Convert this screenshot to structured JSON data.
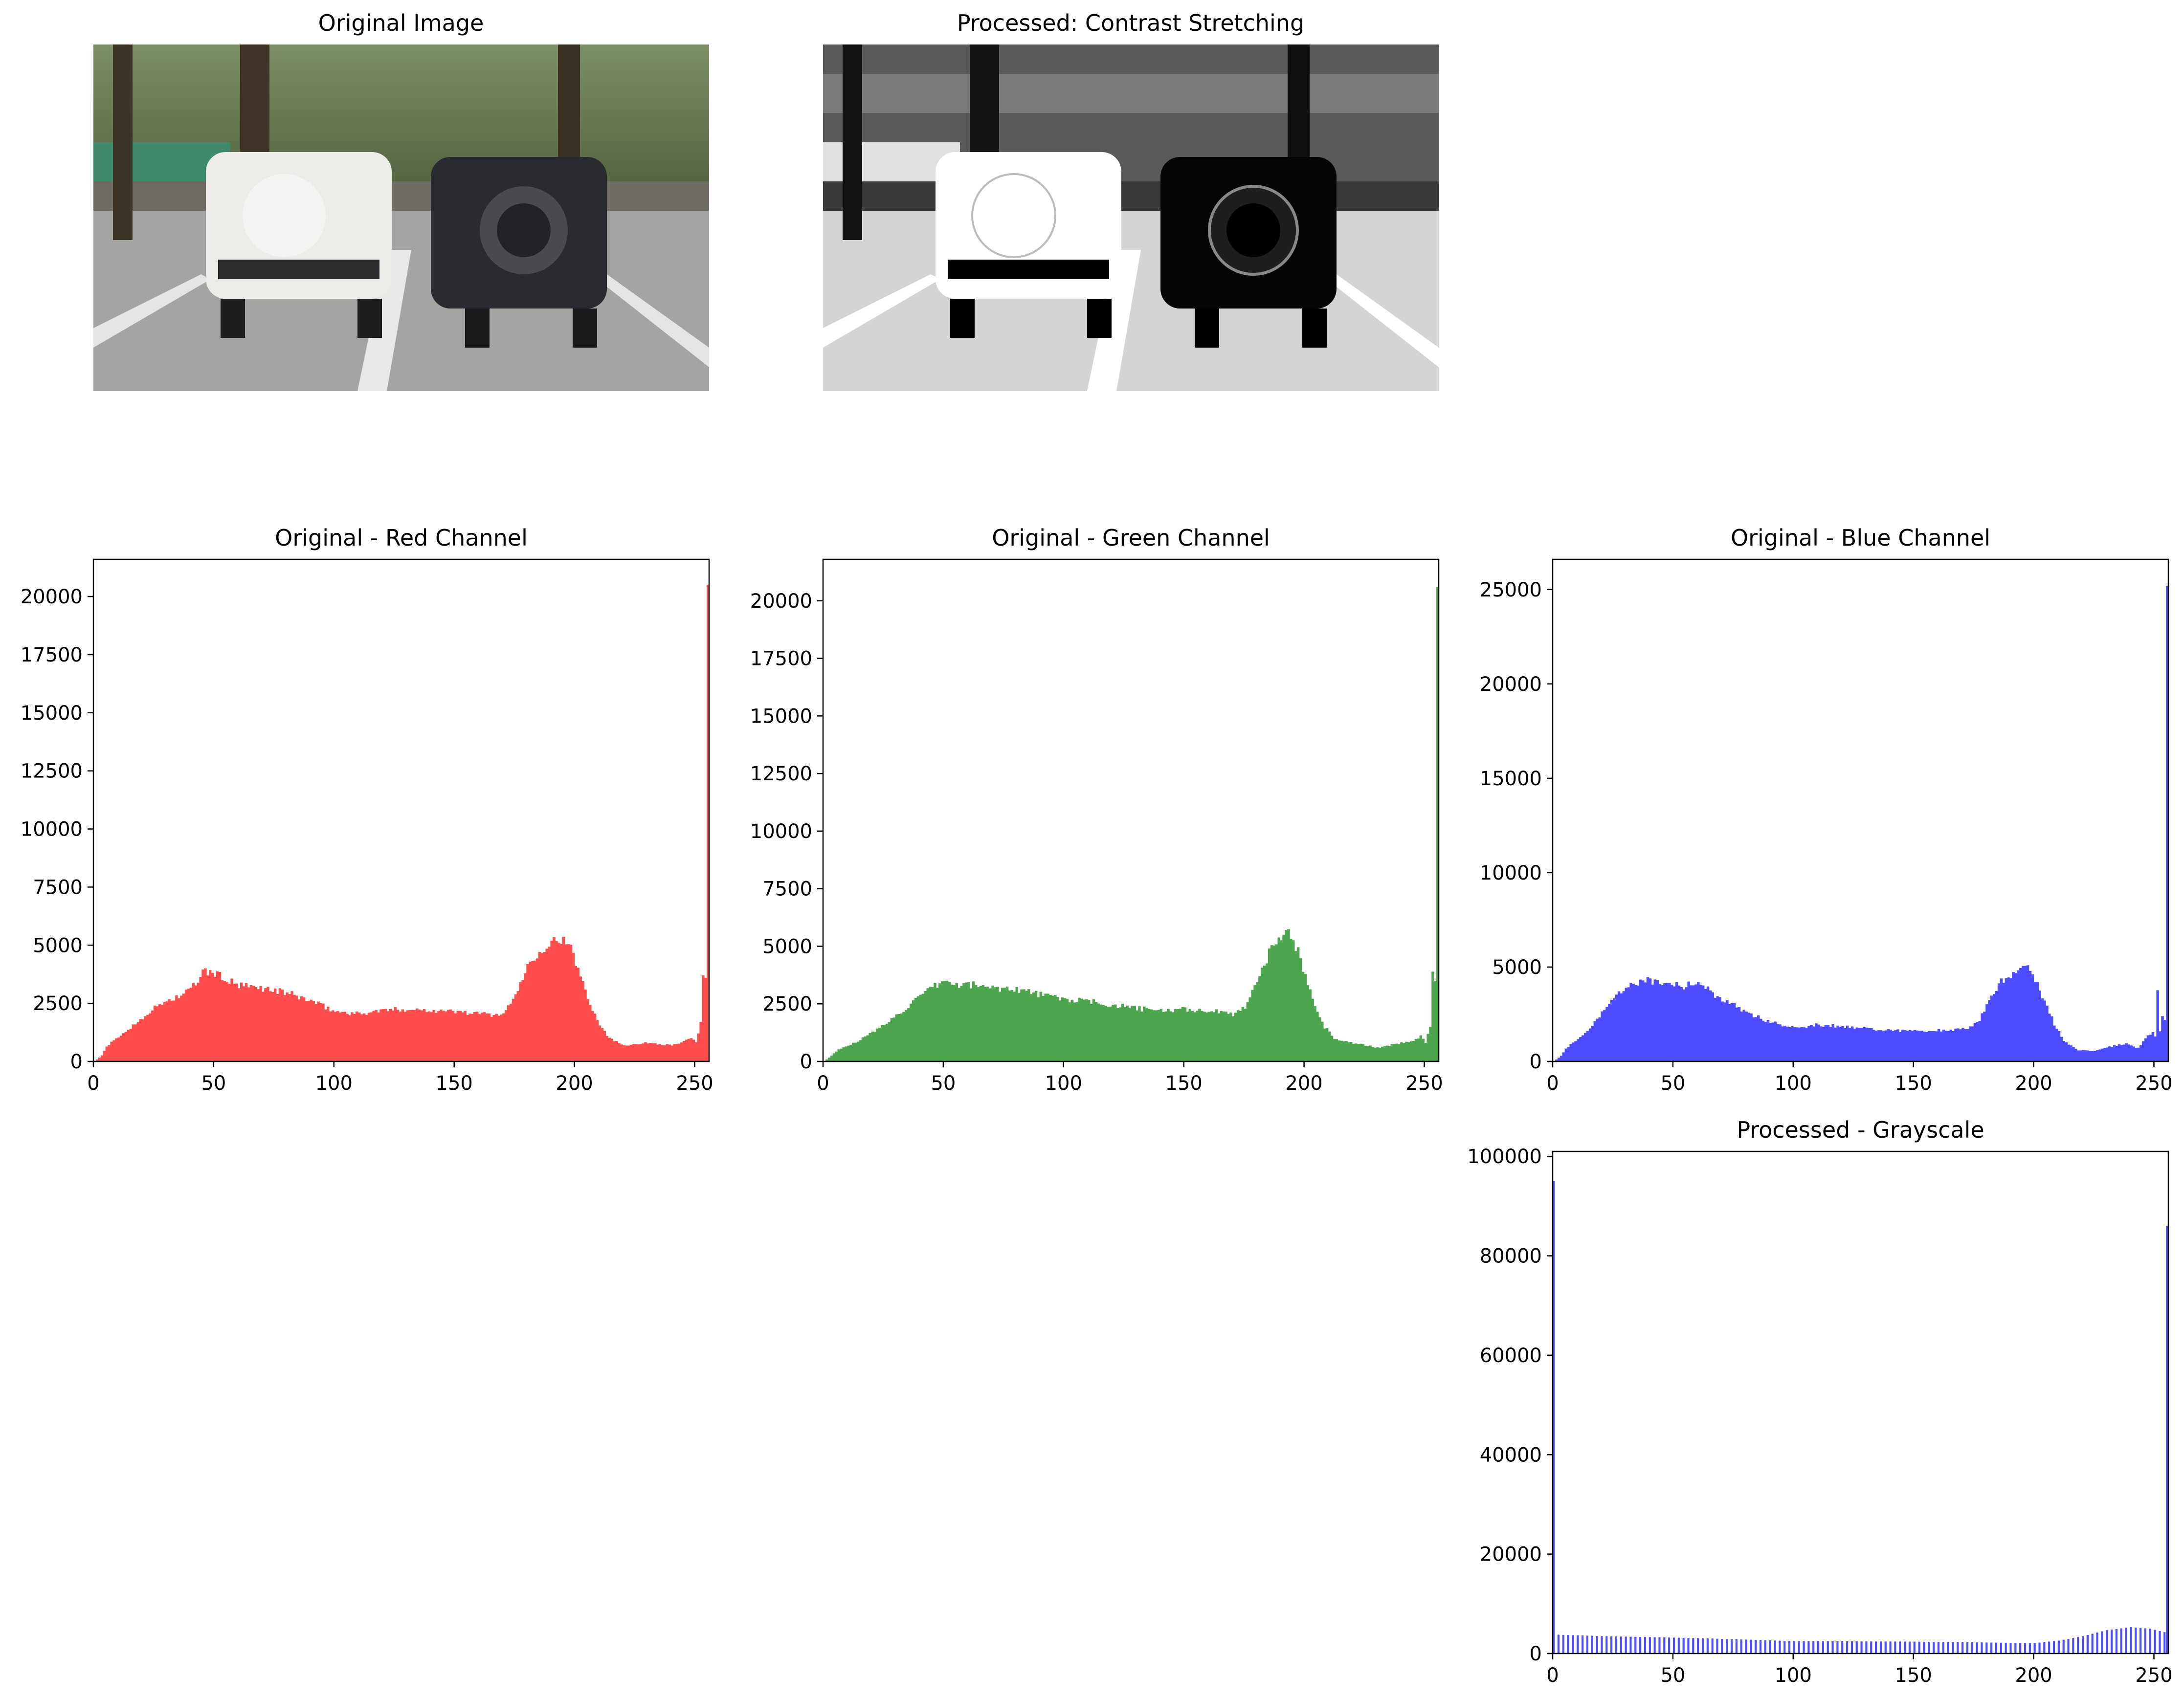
{
  "images": {
    "original_title": "Original Image",
    "processed_title": "Processed: Contrast Stretching"
  },
  "chart_data": [
    {
      "type": "histogram",
      "title": "Original - Red Channel",
      "xlabel": "",
      "ylabel": "",
      "xlim": [
        0,
        256
      ],
      "ylim": [
        0,
        21600
      ],
      "xticks": [
        0,
        50,
        100,
        150,
        200,
        250
      ],
      "yticks": [
        0,
        2500,
        5000,
        7500,
        10000,
        12500,
        15000,
        17500,
        20000
      ],
      "color": "#ff4d4d",
      "bins": 256,
      "profile": [
        [
          0,
          0
        ],
        [
          3,
          250
        ],
        [
          5,
          650
        ],
        [
          10,
          1050
        ],
        [
          15,
          1450
        ],
        [
          20,
          1900
        ],
        [
          25,
          2300
        ],
        [
          30,
          2600
        ],
        [
          35,
          2800
        ],
        [
          40,
          3100
        ],
        [
          43,
          3500
        ],
        [
          45,
          3850
        ],
        [
          50,
          3800
        ],
        [
          55,
          3500
        ],
        [
          60,
          3250
        ],
        [
          70,
          3150
        ],
        [
          80,
          2950
        ],
        [
          90,
          2600
        ],
        [
          100,
          2150
        ],
        [
          110,
          2050
        ],
        [
          120,
          2200
        ],
        [
          130,
          2250
        ],
        [
          140,
          2200
        ],
        [
          150,
          2150
        ],
        [
          160,
          2050
        ],
        [
          168,
          2000
        ],
        [
          172,
          2300
        ],
        [
          176,
          3100
        ],
        [
          180,
          4100
        ],
        [
          185,
          4800
        ],
        [
          190,
          5150
        ],
        [
          194,
          5300
        ],
        [
          198,
          4800
        ],
        [
          202,
          3700
        ],
        [
          206,
          2500
        ],
        [
          210,
          1600
        ],
        [
          214,
          1000
        ],
        [
          220,
          700
        ],
        [
          230,
          800
        ],
        [
          240,
          700
        ],
        [
          245,
          850
        ],
        [
          248,
          1000
        ],
        [
          250,
          800
        ],
        [
          252,
          1700
        ],
        [
          253,
          3700
        ],
        [
          254,
          3600
        ],
        [
          255,
          20500
        ]
      ]
    },
    {
      "type": "histogram",
      "title": "Original - Green Channel",
      "xlabel": "",
      "ylabel": "",
      "xlim": [
        0,
        256
      ],
      "ylim": [
        0,
        21800
      ],
      "xticks": [
        0,
        50,
        100,
        150,
        200,
        250
      ],
      "yticks": [
        0,
        2500,
        5000,
        7500,
        10000,
        12500,
        15000,
        17500,
        20000
      ],
      "color": "#4da64d",
      "bins": 256,
      "profile": [
        [
          0,
          0
        ],
        [
          3,
          250
        ],
        [
          5,
          450
        ],
        [
          10,
          700
        ],
        [
          15,
          950
        ],
        [
          20,
          1250
        ],
        [
          25,
          1600
        ],
        [
          30,
          2000
        ],
        [
          35,
          2400
        ],
        [
          40,
          2800
        ],
        [
          45,
          3200
        ],
        [
          50,
          3500
        ],
        [
          55,
          3300
        ],
        [
          60,
          3350
        ],
        [
          70,
          3200
        ],
        [
          80,
          3150
        ],
        [
          90,
          2900
        ],
        [
          100,
          2700
        ],
        [
          110,
          2600
        ],
        [
          120,
          2450
        ],
        [
          130,
          2300
        ],
        [
          140,
          2200
        ],
        [
          150,
          2250
        ],
        [
          160,
          2200
        ],
        [
          170,
          2050
        ],
        [
          175,
          2400
        ],
        [
          180,
          3500
        ],
        [
          185,
          4700
        ],
        [
          190,
          5500
        ],
        [
          193,
          5550
        ],
        [
          197,
          4800
        ],
        [
          200,
          3700
        ],
        [
          204,
          2500
        ],
        [
          208,
          1500
        ],
        [
          212,
          1000
        ],
        [
          220,
          800
        ],
        [
          230,
          600
        ],
        [
          240,
          800
        ],
        [
          245,
          900
        ],
        [
          248,
          1100
        ],
        [
          250,
          800
        ],
        [
          252,
          1500
        ],
        [
          253,
          3900
        ],
        [
          254,
          3500
        ],
        [
          255,
          20600
        ]
      ]
    },
    {
      "type": "histogram",
      "title": "Original - Blue Channel",
      "xlabel": "",
      "ylabel": "",
      "xlim": [
        0,
        256
      ],
      "ylim": [
        0,
        26600
      ],
      "xticks": [
        0,
        50,
        100,
        150,
        200,
        250
      ],
      "yticks": [
        0,
        5000,
        10000,
        15000,
        20000,
        25000
      ],
      "color": "#4d4dff",
      "bins": 256,
      "profile": [
        [
          0,
          0
        ],
        [
          3,
          300
        ],
        [
          5,
          700
        ],
        [
          10,
          1200
        ],
        [
          15,
          1800
        ],
        [
          20,
          2600
        ],
        [
          25,
          3300
        ],
        [
          30,
          3900
        ],
        [
          35,
          4200
        ],
        [
          40,
          4300
        ],
        [
          45,
          4200
        ],
        [
          50,
          4050
        ],
        [
          55,
          4000
        ],
        [
          60,
          4200
        ],
        [
          65,
          3700
        ],
        [
          70,
          3300
        ],
        [
          80,
          2600
        ],
        [
          90,
          2100
        ],
        [
          100,
          1800
        ],
        [
          110,
          1950
        ],
        [
          120,
          1850
        ],
        [
          130,
          1750
        ],
        [
          140,
          1650
        ],
        [
          150,
          1600
        ],
        [
          160,
          1650
        ],
        [
          170,
          1700
        ],
        [
          176,
          2000
        ],
        [
          180,
          2900
        ],
        [
          186,
          4200
        ],
        [
          192,
          4850
        ],
        [
          197,
          4900
        ],
        [
          200,
          4400
        ],
        [
          204,
          3200
        ],
        [
          208,
          2000
        ],
        [
          212,
          1100
        ],
        [
          218,
          600
        ],
        [
          225,
          550
        ],
        [
          232,
          800
        ],
        [
          238,
          950
        ],
        [
          243,
          700
        ],
        [
          247,
          1400
        ],
        [
          249,
          1500
        ],
        [
          250,
          1300
        ],
        [
          251,
          3700
        ],
        [
          252,
          1600
        ],
        [
          253,
          2400
        ],
        [
          254,
          2200
        ],
        [
          255,
          25200
        ]
      ]
    },
    {
      "type": "histogram",
      "title": "Processed - Grayscale",
      "xlabel": "",
      "ylabel": "",
      "xlim": [
        0,
        256
      ],
      "ylim": [
        0,
        101000
      ],
      "xticks": [
        0,
        50,
        100,
        150,
        200,
        250
      ],
      "yticks": [
        0,
        20000,
        40000,
        60000,
        80000,
        100000
      ],
      "color": "#4d4dff",
      "bins": 256,
      "comb_step": 2,
      "profile": [
        [
          0,
          95000
        ],
        [
          1,
          3800
        ],
        [
          20,
          3500
        ],
        [
          60,
          3100
        ],
        [
          100,
          2500
        ],
        [
          150,
          2400
        ],
        [
          200,
          2100
        ],
        [
          210,
          2600
        ],
        [
          220,
          3500
        ],
        [
          230,
          4700
        ],
        [
          240,
          5300
        ],
        [
          248,
          5000
        ],
        [
          254,
          4300
        ],
        [
          255,
          86000
        ]
      ]
    }
  ]
}
